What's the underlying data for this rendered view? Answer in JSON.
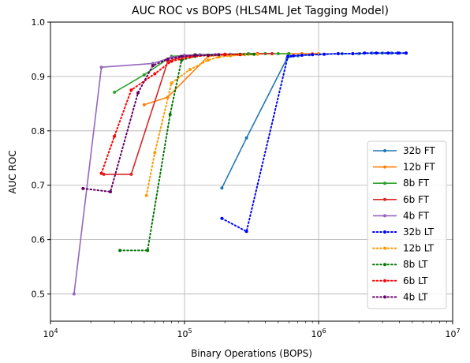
{
  "chart_data": {
    "type": "line",
    "title": "AUC ROC vs BOPS (HLS4ML Jet Tagging Model)",
    "xlabel": "Binary Operations (BOPS)",
    "ylabel": "AUC ROC",
    "xscale": "log",
    "xlim": [
      10000,
      10000000
    ],
    "ylim": [
      0.45,
      1.0
    ],
    "yticks": [
      0.5,
      0.6,
      0.7,
      0.8,
      0.9,
      1.0
    ],
    "yticklabels": [
      "0.5",
      "0.6",
      "0.7",
      "0.8",
      "0.9",
      "1.0"
    ],
    "xticks": [
      {
        "value": 10000,
        "base": "10",
        "exp": "4"
      },
      {
        "value": 100000,
        "base": "10",
        "exp": "5"
      },
      {
        "value": 1000000,
        "base": "10",
        "exp": "6"
      },
      {
        "value": 10000000,
        "base": "10",
        "exp": "7"
      }
    ],
    "grid": true,
    "legend_position": "lower-right",
    "series": [
      {
        "name": "32b FT",
        "color": "#1f77b4",
        "style": "solid",
        "x": [
          190000,
          290000,
          580000,
          620000,
          700000,
          850000,
          1000000,
          1500000,
          2000000,
          2500000,
          3000000,
          3500000,
          4000000,
          4500000
        ],
        "y": [
          0.695,
          0.787,
          0.933,
          0.937,
          0.938,
          0.94,
          0.941,
          0.942,
          0.942,
          0.943,
          0.943,
          0.943,
          0.943,
          0.943
        ]
      },
      {
        "name": "12b FT",
        "color": "#ff7f0e",
        "style": "solid",
        "x": [
          50000,
          75000,
          150000,
          200000,
          300000,
          450000,
          600000,
          750000,
          900000,
          1000000
        ],
        "y": [
          0.848,
          0.862,
          0.937,
          0.94,
          0.941,
          0.942,
          0.942,
          0.942,
          0.942,
          0.942
        ]
      },
      {
        "name": "8b FT",
        "color": "#2ca02c",
        "style": "solid",
        "x": [
          30000,
          50000,
          80000,
          120000,
          200000,
          300000,
          400000,
          500000,
          600000
        ],
        "y": [
          0.871,
          0.903,
          0.937,
          0.94,
          0.941,
          0.942,
          0.942,
          0.942,
          0.942
        ]
      },
      {
        "name": "6b FT",
        "color": "#d62728",
        "style": "solid",
        "x": [
          25000,
          40000,
          75000,
          100000,
          130000,
          200000,
          280000,
          350000,
          450000
        ],
        "y": [
          0.72,
          0.72,
          0.928,
          0.937,
          0.939,
          0.941,
          0.941,
          0.942,
          0.942
        ]
      },
      {
        "name": "4b FT",
        "color": "#9467bd",
        "style": "solid",
        "x": [
          15000,
          24000,
          58000,
          80000,
          100000,
          130000,
          170000,
          220000
        ],
        "y": [
          0.5,
          0.917,
          0.924,
          0.935,
          0.939,
          0.94,
          0.94,
          0.941
        ]
      },
      {
        "name": "32b LT",
        "color": "#0000ff",
        "style": "dotted",
        "x": [
          190000,
          290000,
          590000,
          650000,
          750000,
          900000,
          1100000,
          1400000,
          1800000,
          2200000,
          2700000,
          3300000,
          3900000,
          4500000
        ],
        "y": [
          0.639,
          0.615,
          0.937,
          0.938,
          0.939,
          0.94,
          0.941,
          0.942,
          0.942,
          0.943,
          0.943,
          0.943,
          0.943,
          0.943
        ]
      },
      {
        "name": "12b LT",
        "color": "#ff9900",
        "style": "dotted",
        "x": [
          52000,
          60000,
          80000,
          110000,
          150000,
          180000,
          220000,
          280000,
          350000
        ],
        "y": [
          0.681,
          0.76,
          0.888,
          0.913,
          0.93,
          0.936,
          0.938,
          0.94,
          0.941
        ]
      },
      {
        "name": "8b LT",
        "color": "#007700",
        "style": "dotted",
        "x": [
          33000,
          53000,
          78000,
          95000,
          120000,
          150000,
          200000,
          260000,
          330000
        ],
        "y": [
          0.58,
          0.58,
          0.83,
          0.93,
          0.937,
          0.939,
          0.94,
          0.941,
          0.941
        ]
      },
      {
        "name": "6b LT",
        "color": "#ff0000",
        "style": "dotted",
        "x": [
          24000,
          30000,
          40000,
          60000,
          80000,
          110000,
          150000,
          200000,
          260000
        ],
        "y": [
          0.722,
          0.79,
          0.875,
          0.905,
          0.928,
          0.936,
          0.939,
          0.94,
          0.94
        ]
      },
      {
        "name": "4b LT",
        "color": "#660066",
        "style": "dotted",
        "x": [
          17500,
          28000,
          45000,
          58000,
          75000,
          95000,
          120000,
          150000,
          180000
        ],
        "y": [
          0.694,
          0.688,
          0.87,
          0.92,
          0.932,
          0.937,
          0.939,
          0.939,
          0.94
        ]
      }
    ]
  }
}
